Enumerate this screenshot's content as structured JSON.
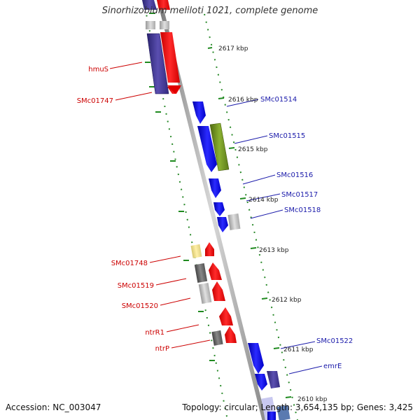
{
  "title": "Sinorhizobium meliloti 1021, complete genome",
  "accession": "Accession: NC_003047",
  "summary": "Topology: circular; Length: 3,654,135 bp; Genes: 3,425",
  "kbp_labels": [
    "2617 kbp",
    "2616 kbp",
    "2615 kbp",
    "2614 kbp",
    "2613 kbp",
    "2612 kbp",
    "2611 kbp",
    "2610 kbp"
  ],
  "genes_left": [
    "hmuS",
    "SMc01747",
    "SMc01748",
    "SMc01519",
    "SMc01520",
    "ntrR1",
    "ntrP"
  ],
  "genes_right": [
    "SMc01514",
    "SMc01515",
    "SMc01516",
    "SMc01517",
    "SMc01518",
    "SMc01522",
    "emrE"
  ],
  "colors": {
    "forward_strand": "#1414ff",
    "reverse_strand": "#ff1a1a",
    "left_label": "#cc0000",
    "right_label": "#1a1aaa",
    "tick": "#1f8a1f"
  }
}
